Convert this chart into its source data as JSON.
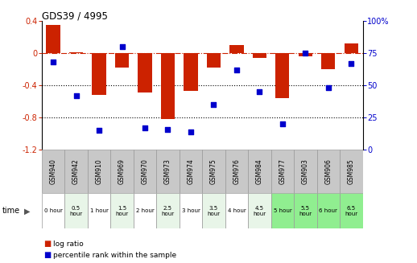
{
  "title": "GDS39 / 4995",
  "categories": [
    "GSM940",
    "GSM942",
    "GSM910",
    "GSM969",
    "GSM970",
    "GSM973",
    "GSM974",
    "GSM975",
    "GSM976",
    "GSM984",
    "GSM977",
    "GSM903",
    "GSM906",
    "GSM985"
  ],
  "time_labels": [
    "0 hour",
    "0.5\nhour",
    "1 hour",
    "1.5\nhour",
    "2 hour",
    "2.5\nhour",
    "3 hour",
    "3.5\nhour",
    "4 hour",
    "4.5\nhour",
    "5 hour",
    "5.5\nhour",
    "6 hour",
    "6.5\nhour"
  ],
  "log_ratio": [
    0.35,
    0.01,
    -0.52,
    -0.18,
    -0.49,
    -0.82,
    -0.47,
    -0.18,
    0.1,
    -0.06,
    -0.56,
    -0.04,
    -0.2,
    0.12
  ],
  "percentile": [
    68,
    42,
    15,
    80,
    17,
    16,
    14,
    35,
    62,
    45,
    20,
    75,
    48,
    67
  ],
  "ylim_left": [
    -1.2,
    0.4
  ],
  "ylim_right": [
    0,
    100
  ],
  "bar_color": "#cc2200",
  "dot_color": "#0000cc",
  "dashed_line_color": "#cc2200",
  "dotted_line_color": "#000000",
  "left_yticks": [
    0.4,
    0.0,
    -0.4,
    -0.8,
    -1.2
  ],
  "right_yticks": [
    100,
    75,
    50,
    25,
    0
  ],
  "time_bg_colors": [
    "#ffffff",
    "#e8f5e8",
    "#ffffff",
    "#e8f5e8",
    "#ffffff",
    "#e8f5e8",
    "#ffffff",
    "#e8f5e8",
    "#ffffff",
    "#e8f5e8",
    "#90ee90",
    "#90ee90",
    "#90ee90",
    "#90ee90"
  ],
  "gsm_bg_color": "#c8c8c8",
  "legend_log_ratio_color": "#cc2200",
  "legend_percentile_color": "#0000cc"
}
